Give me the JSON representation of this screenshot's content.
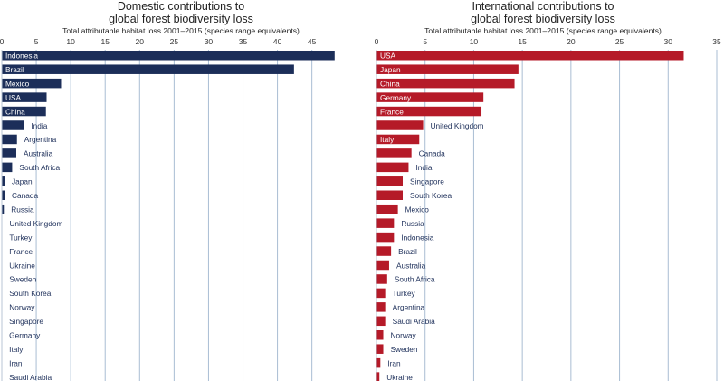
{
  "colors": {
    "domestic": "#1c2e59",
    "international": "#b51a28",
    "grid": "#a9bdd3"
  },
  "chart_data": [
    {
      "type": "bar",
      "orientation": "horizontal",
      "title_lines": [
        "Domestic contributions to",
        "global forest biodiversity loss"
      ],
      "subtitle": "Total attributable habitat loss 2001–2015 (species range equivalents)",
      "xlim": [
        0,
        48
      ],
      "xticks": [
        0,
        5,
        10,
        15,
        20,
        25,
        30,
        35,
        40,
        45
      ],
      "grid": true,
      "categories": [
        "Indonesia",
        "Brazil",
        "Mexico",
        "USA",
        "China",
        "India",
        "Argentina",
        "Australia",
        "South Africa",
        "Japan",
        "Canada",
        "Russia",
        "United Kingdom",
        "Turkey",
        "France",
        "Ukraine",
        "Sweden",
        "South Korea",
        "Norway",
        "Singapore",
        "Germany",
        "Italy",
        "Iran",
        "Saudi Arabia"
      ],
      "values": [
        48.3,
        42.4,
        8.6,
        6.5,
        6.4,
        3.2,
        2.2,
        2.1,
        1.5,
        0.4,
        0.4,
        0.3,
        0.05,
        0.05,
        0.04,
        0.04,
        0.03,
        0.03,
        0.03,
        0.02,
        0.02,
        0.02,
        0.02,
        0.01
      ]
    },
    {
      "type": "bar",
      "orientation": "horizontal",
      "title_lines": [
        "International contributions to",
        "global forest biodiversity loss"
      ],
      "subtitle": "Total attributable habitat loss 2001–2015 (species range equivalents)",
      "xlim": [
        0,
        35
      ],
      "xticks": [
        0,
        5,
        10,
        15,
        20,
        25,
        30,
        35
      ],
      "grid": true,
      "categories": [
        "USA",
        "Japan",
        "China",
        "Germany",
        "France",
        "United Kingdom",
        "Italy",
        "Canada",
        "India",
        "Singapore",
        "South Korea",
        "Mexico",
        "Russia",
        "Indonesia",
        "Brazil",
        "Australia",
        "South Africa",
        "Turkey",
        "Argentina",
        "Saudi Arabia",
        "Norway",
        "Sweden",
        "Iran",
        "Ukraine"
      ],
      "values": [
        31.6,
        14.6,
        14.2,
        11.0,
        10.8,
        4.8,
        4.4,
        3.6,
        3.3,
        2.7,
        2.7,
        2.2,
        1.8,
        1.8,
        1.5,
        1.3,
        1.1,
        0.9,
        0.9,
        0.9,
        0.7,
        0.7,
        0.4,
        0.3
      ]
    }
  ]
}
